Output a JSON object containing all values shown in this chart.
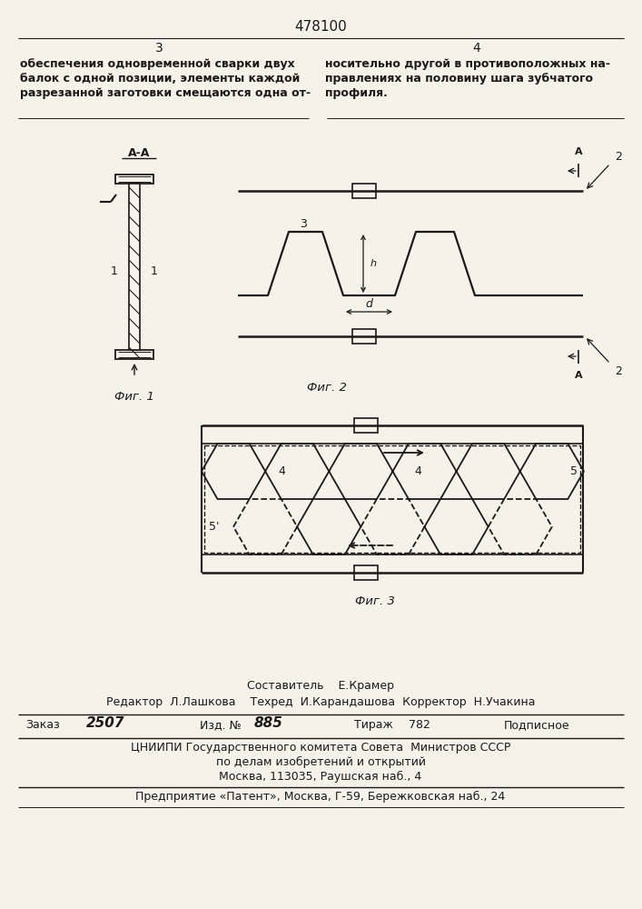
{
  "title": "478100",
  "page_col_left": "3",
  "page_col_right": "4",
  "text_left": "обеспечения одновременной сварки двух\nбалок с одной позиции, элементы каждой\nразрезанной заготовки смещаются одна от-",
  "text_right": "носительно другой в противоположных на-\nправлениях на половину шага зубчатого\nпрофиля.",
  "fig1_label": "Фиг. 1",
  "fig2_label": "Фиг. 2",
  "fig3_label": "Фиг. 3",
  "section_label": "А-А",
  "footer_line1": "Составитель    Е.Крамер",
  "footer_line2": "Редактор  Л.Лашкова    Техред  И.Карандашова  Корректор  Н.Учакина",
  "footer_line4": "ЦНИИПИ Государственного комитета Совета  Министров СССР",
  "footer_line5": "по делам изобретений и открытий",
  "footer_line6": "Москва, 113035, Раушская наб., 4",
  "footer_line7": "Предприятие «Патент», Москва, Г-59, Бережковская наб., 24",
  "bg_color": "#f5f2ea",
  "line_color": "#1a1a1a",
  "text_color": "#1a1a1a"
}
